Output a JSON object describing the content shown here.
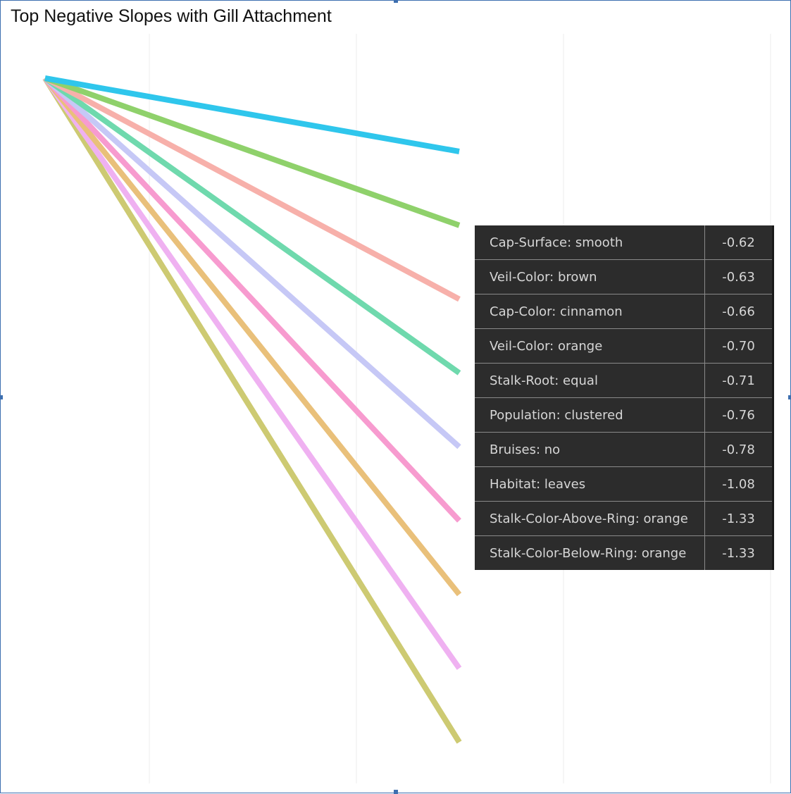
{
  "chart_data": {
    "type": "line",
    "title": "Top Negative Slopes with Gill Attachment",
    "xlabel": "",
    "ylabel": "",
    "grid": true,
    "legend_placement": "right",
    "series": [
      {
        "name": "Cap-Surface: smooth",
        "slope": -0.62,
        "slope_label": "-0.62",
        "color": "#2fc6ec"
      },
      {
        "name": "Veil-Color: brown",
        "slope": -0.63,
        "slope_label": "-0.63",
        "color": "#8fd16b"
      },
      {
        "name": "Cap-Color: cinnamon",
        "slope": -0.66,
        "slope_label": "-0.66",
        "color": "#f7b0aa"
      },
      {
        "name": "Veil-Color: orange",
        "slope": -0.7,
        "slope_label": "-0.70",
        "color": "#6fd9ad"
      },
      {
        "name": "Stalk-Root: equal",
        "slope": -0.71,
        "slope_label": "-0.71",
        "color": "#c6c8f6"
      },
      {
        "name": "Population: clustered",
        "slope": -0.76,
        "slope_label": "-0.76",
        "color": "#f79bcf"
      },
      {
        "name": "Bruises: no",
        "slope": -0.78,
        "slope_label": "-0.78",
        "color": "#e9c07a"
      },
      {
        "name": "Habitat: leaves",
        "slope": -1.08,
        "slope_label": "-1.08",
        "color": "#efb1f1"
      },
      {
        "name": "Stalk-Color-Above-Ring: orange",
        "slope": -1.33,
        "slope_label": "-1.33",
        "color": "#cdca72"
      },
      {
        "name": "Stalk-Color-Below-Ring: orange",
        "slope": -1.33,
        "slope_label": "-1.33",
        "color": "#cdca72"
      }
    ]
  }
}
